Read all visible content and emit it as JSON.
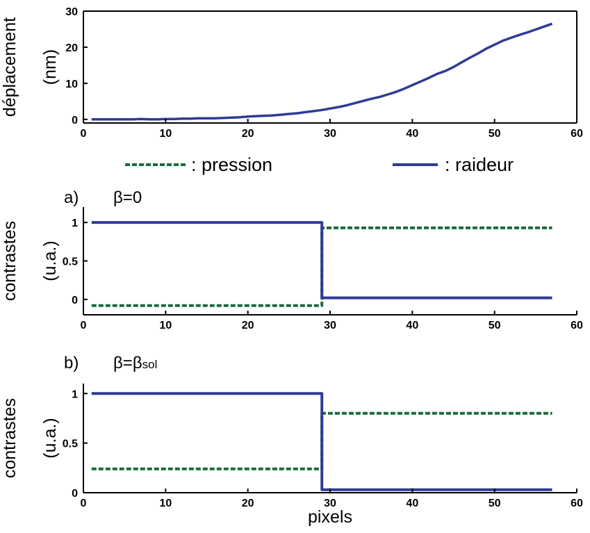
{
  "colors": {
    "pression": "#1a6b3a",
    "raideur": "#2e3b96",
    "axes": "#000000"
  },
  "legend": {
    "pression_label": ": pression",
    "raideur_label": ": raideur"
  },
  "panels": {
    "a": {
      "letter": "a)",
      "beta_prefix": "β=0",
      "beta_sub": ""
    },
    "b": {
      "letter": "b)",
      "beta_prefix": "β=β",
      "beta_sub": "sol"
    }
  },
  "chart_data": [
    {
      "type": "line",
      "ylabel": [
        "déplacement",
        "(nm)"
      ],
      "xlabel": "",
      "xlim": [
        0,
        60
      ],
      "ylim": [
        -1,
        30
      ],
      "xticks": [
        0,
        10,
        20,
        30,
        40,
        50,
        60
      ],
      "yticks": [
        0,
        10,
        20,
        30
      ],
      "series": [
        {
          "name": "raideur",
          "x": [
            1,
            2,
            3,
            4,
            5,
            6,
            7,
            8,
            9,
            10,
            11,
            12,
            13,
            14,
            15,
            16,
            17,
            18,
            19,
            20,
            21,
            22,
            23,
            24,
            25,
            26,
            27,
            28,
            29,
            30,
            31,
            32,
            33,
            34,
            35,
            36,
            37,
            38,
            39,
            40,
            41,
            42,
            43,
            44,
            45,
            46,
            47,
            48,
            49,
            50,
            51,
            52,
            53,
            54,
            55,
            56,
            57
          ],
          "y": [
            0.0,
            0.0,
            0.0,
            0.0,
            0.0,
            0.0,
            0.1,
            0.0,
            0.0,
            0.1,
            0.1,
            0.2,
            0.2,
            0.3,
            0.3,
            0.3,
            0.4,
            0.5,
            0.6,
            0.8,
            0.9,
            1.0,
            1.1,
            1.3,
            1.5,
            1.7,
            2.0,
            2.3,
            2.6,
            3.0,
            3.4,
            3.9,
            4.5,
            5.1,
            5.7,
            6.2,
            6.9,
            7.6,
            8.5,
            9.5,
            10.5,
            11.5,
            12.6,
            13.4,
            14.5,
            15.8,
            17.1,
            18.3,
            19.6,
            20.7,
            21.8,
            22.6,
            23.4,
            24.1,
            24.9,
            25.7,
            26.5
          ]
        }
      ]
    },
    {
      "type": "line",
      "ylabel": [
        "contrastes",
        "(u.a.)"
      ],
      "xlabel": "",
      "xlim": [
        0,
        60
      ],
      "ylim": [
        -0.2,
        1.2
      ],
      "xticks": [
        0,
        10,
        20,
        30,
        40,
        50,
        60
      ],
      "yticks": [
        0,
        0.5,
        1
      ],
      "series": [
        {
          "name": "raideur",
          "x": [
            1,
            29,
            29,
            57
          ],
          "y": [
            1.0,
            1.0,
            0.02,
            0.02
          ]
        },
        {
          "name": "pression",
          "x": [
            1,
            29,
            29,
            57
          ],
          "y": [
            -0.08,
            -0.08,
            0.93,
            0.93
          ]
        }
      ]
    },
    {
      "type": "line",
      "ylabel": [
        "contrastes",
        "(u.a.)"
      ],
      "xlabel": "pixels",
      "xlim": [
        0,
        60
      ],
      "ylim": [
        0,
        1.1
      ],
      "xticks": [
        0,
        10,
        20,
        30,
        40,
        50,
        60
      ],
      "yticks": [
        0,
        0.5,
        1
      ],
      "series": [
        {
          "name": "raideur",
          "x": [
            1,
            29,
            29,
            57
          ],
          "y": [
            1.0,
            1.0,
            0.03,
            0.03
          ]
        },
        {
          "name": "pression",
          "x": [
            1,
            29,
            29,
            57
          ],
          "y": [
            0.24,
            0.24,
            0.8,
            0.8
          ]
        }
      ]
    }
  ]
}
